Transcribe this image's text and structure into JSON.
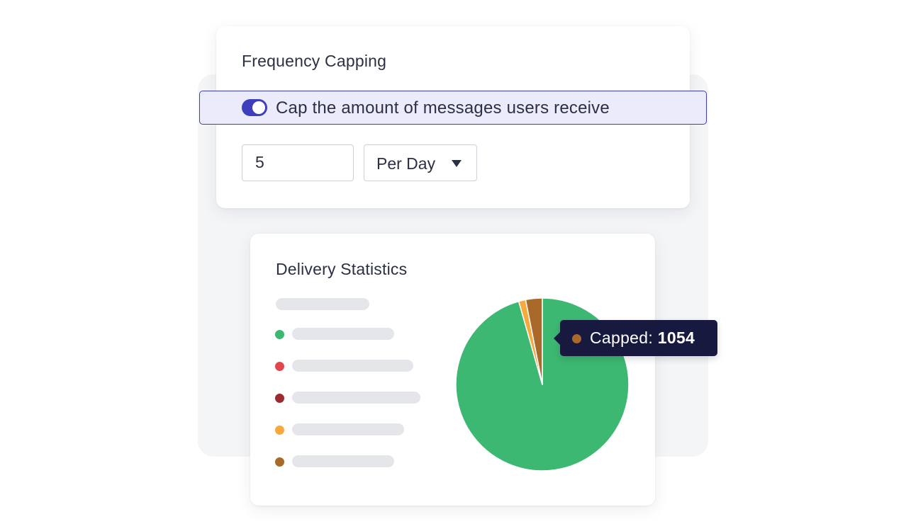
{
  "frequency_capping": {
    "title": "Frequency Capping",
    "toggle_label": "Cap the amount of messages users receive",
    "toggle_on": true,
    "limit_value": "5",
    "period_selected": "Per Day"
  },
  "delivery_statistics": {
    "title": "Delivery Statistics",
    "legend_dot_colors": [
      "#3db873",
      "#e2474f",
      "#9b2b2e",
      "#f7a93b",
      "#a8692a"
    ]
  },
  "tooltip": {
    "label": "Capped:",
    "value": "1054",
    "color": "#a8692a"
  },
  "colors": {
    "accent": "#3d3fbd",
    "toggle_highlight_bg": "#ecebfb",
    "tooltip_bg": "#17193f"
  },
  "chart_data": {
    "type": "pie",
    "categories": [
      "",
      "",
      "",
      "",
      ""
    ],
    "values": [
      95.6,
      0,
      0,
      1.3,
      3.1
    ],
    "colors": [
      "#3db873",
      "#e2474f",
      "#9b2b2e",
      "#f7a93b",
      "#a8692a"
    ],
    "title": "Delivery Statistics"
  }
}
